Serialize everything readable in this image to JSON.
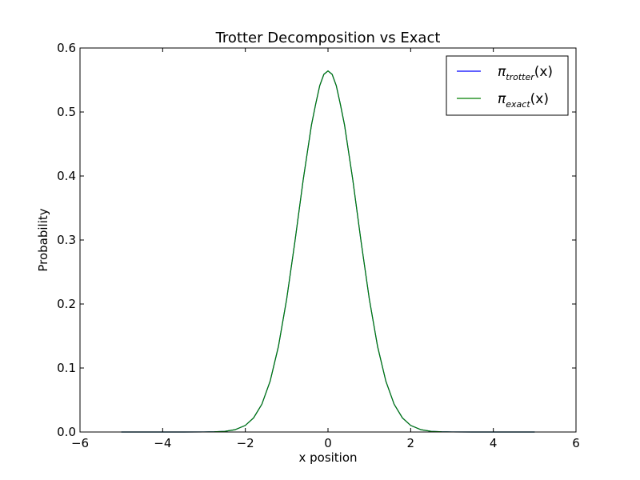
{
  "chart_data": {
    "type": "line",
    "title": "Trotter Decomposition vs Exact",
    "xlabel": "x position",
    "ylabel": "Probability",
    "xlim": [
      -6,
      6
    ],
    "ylim": [
      0,
      0.6
    ],
    "xticks": [
      -6,
      -4,
      -2,
      0,
      2,
      4,
      6
    ],
    "xtick_labels": [
      "−6",
      "−4",
      "−2",
      "0",
      "2",
      "4",
      "6"
    ],
    "yticks": [
      0.0,
      0.1,
      0.2,
      0.3,
      0.4,
      0.5,
      0.6
    ],
    "ytick_labels": [
      "0.0",
      "0.1",
      "0.2",
      "0.3",
      "0.4",
      "0.5",
      "0.6"
    ],
    "grid": false,
    "legend_position": "top-right",
    "x": [
      -5.0,
      -4.5,
      -4.0,
      -3.5,
      -3.0,
      -2.75,
      -2.5,
      -2.25,
      -2.0,
      -1.8,
      -1.6,
      -1.4,
      -1.2,
      -1.0,
      -0.8,
      -0.6,
      -0.4,
      -0.3,
      -0.2,
      -0.1,
      0.0,
      0.1,
      0.2,
      0.3,
      0.4,
      0.6,
      0.8,
      1.0,
      1.2,
      1.4,
      1.6,
      1.8,
      2.0,
      2.25,
      2.5,
      2.75,
      3.0,
      3.5,
      4.0,
      4.5,
      5.0
    ],
    "series": [
      {
        "name": "π",
        "name_sub": "trotter",
        "name_suffix": "(x)",
        "color": "#0000ff",
        "values": [
          0.0,
          0.0,
          0.0,
          0.0,
          0.0001,
          0.0003,
          0.001,
          0.0036,
          0.0103,
          0.0221,
          0.0434,
          0.0794,
          0.1335,
          0.2076,
          0.2977,
          0.394,
          0.4797,
          0.5118,
          0.5412,
          0.5589,
          0.5642,
          0.5589,
          0.5412,
          0.5118,
          0.4797,
          0.394,
          0.2977,
          0.2076,
          0.1335,
          0.0794,
          0.0434,
          0.0221,
          0.0103,
          0.0036,
          0.001,
          0.0003,
          0.0001,
          0.0,
          0.0,
          0.0,
          0.0
        ]
      },
      {
        "name": "π",
        "name_sub": "exact",
        "name_suffix": "(x)",
        "color": "#007f00",
        "values": [
          0.0,
          0.0,
          0.0,
          0.0,
          0.0001,
          0.0003,
          0.001,
          0.0036,
          0.0103,
          0.0221,
          0.0434,
          0.0794,
          0.1335,
          0.2076,
          0.2977,
          0.394,
          0.4797,
          0.5118,
          0.5412,
          0.5589,
          0.5642,
          0.5589,
          0.5412,
          0.5118,
          0.4797,
          0.394,
          0.2977,
          0.2076,
          0.1335,
          0.0794,
          0.0434,
          0.0221,
          0.0103,
          0.0036,
          0.001,
          0.0003,
          0.0001,
          0.0,
          0.0,
          0.0,
          0.0
        ]
      }
    ]
  }
}
